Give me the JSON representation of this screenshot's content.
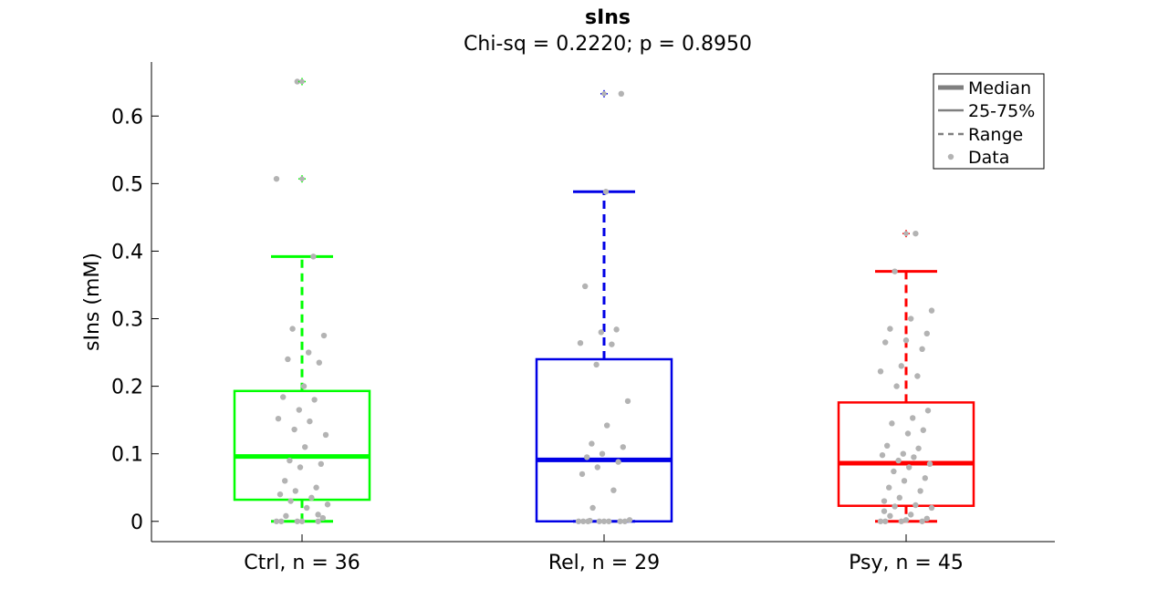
{
  "chart_data": {
    "type": "box",
    "title": "sIns",
    "subtitle": "Chi-sq = 0.2220; p = 0.8950",
    "ylabel": "sIns (mM)",
    "ylim": [
      -0.03,
      0.68
    ],
    "yticks": [
      0,
      0.1,
      0.2,
      0.3,
      0.4,
      0.5,
      0.6
    ],
    "ytick_labels": [
      "0",
      "0.1",
      "0.2",
      "0.3",
      "0.4",
      "0.5",
      "0.6"
    ],
    "grid": false,
    "legend_position": "top-right",
    "legend": [
      {
        "label": "Median",
        "style": "thick"
      },
      {
        "label": "25-75%",
        "style": "thin"
      },
      {
        "label": "Range",
        "style": "dashed"
      },
      {
        "label": "Data",
        "style": "dot"
      }
    ],
    "point_color": "#b3b3b3",
    "groups": [
      {
        "label": "Ctrl, n = 36",
        "color": "#00ff00",
        "q1": 0.032,
        "median": 0.096,
        "q3": 0.193,
        "whisker_low": 0.0,
        "whisker_high": 0.392,
        "outliers": [
          0.507,
          0.651
        ],
        "points": [
          0,
          0,
          0,
          0,
          0,
          0.005,
          0.008,
          0.02,
          0.025,
          0.03,
          0.035,
          0.04,
          0.045,
          0.05,
          0.06,
          0.08,
          0.085,
          0.09,
          0.11,
          0.128,
          0.136,
          0.148,
          0.152,
          0.165,
          0.18,
          0.184,
          0.2,
          0.235,
          0.24,
          0.25,
          0.275,
          0.285,
          0.392,
          0.507,
          0.651,
          0.01
        ]
      },
      {
        "label": "Rel, n = 29",
        "color": "#0000e6",
        "q1": 0.0,
        "median": 0.091,
        "q3": 0.24,
        "whisker_low": 0.0,
        "whisker_high": 0.488,
        "outliers": [
          0.633
        ],
        "points": [
          0,
          0,
          0,
          0,
          0,
          0,
          0,
          0,
          0.002,
          0.02,
          0.046,
          0.07,
          0.08,
          0.088,
          0.095,
          0.1,
          0.11,
          0.115,
          0.142,
          0.178,
          0.232,
          0.262,
          0.264,
          0.28,
          0.284,
          0.348,
          0.488,
          0.633,
          0.001
        ]
      },
      {
        "label": "Psy, n = 45",
        "color": "#ff0000",
        "q1": 0.023,
        "median": 0.086,
        "q3": 0.176,
        "whisker_low": 0.0,
        "whisker_high": 0.37,
        "outliers": [
          0.426
        ],
        "points": [
          0,
          0,
          0,
          0,
          0.002,
          0.004,
          0.008,
          0.01,
          0.02,
          0.022,
          0.024,
          0.03,
          0.035,
          0.045,
          0.05,
          0.06,
          0.064,
          0.074,
          0.08,
          0.085,
          0.09,
          0.095,
          0.098,
          0.1,
          0.108,
          0.112,
          0.13,
          0.135,
          0.145,
          0.153,
          0.164,
          0.2,
          0.215,
          0.222,
          0.23,
          0.255,
          0.265,
          0.268,
          0.278,
          0.285,
          0.3,
          0.312,
          0.37,
          0.426,
          0.015
        ]
      }
    ]
  }
}
